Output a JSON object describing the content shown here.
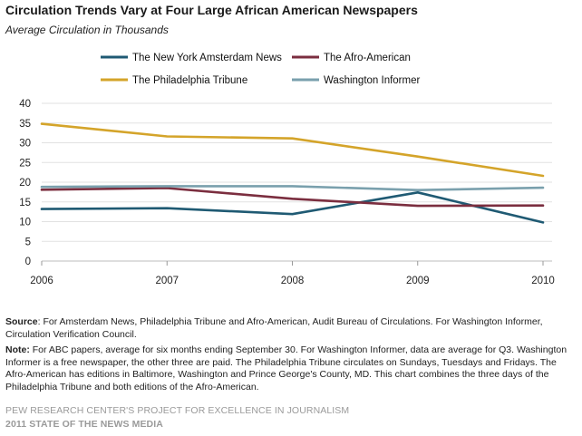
{
  "header": {
    "title": "Circulation Trends Vary at Four Large African American Newspapers",
    "subtitle": "Average Circulation in Thousands"
  },
  "chart_data": {
    "type": "line",
    "title": "Circulation Trends Vary at Four Large African American Newspapers",
    "subtitle": "Average Circulation in Thousands",
    "x": [
      "2006",
      "2007",
      "2008",
      "2009",
      "2010"
    ],
    "ylim": [
      0,
      40
    ],
    "yticks": [
      0,
      5,
      10,
      15,
      20,
      25,
      30,
      35,
      40
    ],
    "grid": true,
    "legend_position": "top",
    "series": [
      {
        "name": "The New York Amsterdam News",
        "color": "#1f5a73",
        "values": [
          13.2,
          13.4,
          11.9,
          17.4,
          9.8
        ]
      },
      {
        "name": "The Afro-American",
        "color": "#7b2e3f",
        "values": [
          18.1,
          18.5,
          15.8,
          14.0,
          14.1
        ]
      },
      {
        "name": "The Philadelphia Tribune",
        "color": "#d4a42a",
        "values": [
          34.8,
          31.6,
          31.1,
          26.5,
          21.6
        ]
      },
      {
        "name": "Washington Informer",
        "color": "#7aa0ad",
        "values": [
          18.8,
          19.0,
          19.0,
          18.0,
          18.6
        ]
      }
    ]
  },
  "notes": {
    "source_label": "Source",
    "source_text": ": For Amsterdam News, Philadelphia Tribune and Afro-American, Audit Bureau of Circulations. For Washington Informer, Circulation Verification Council.",
    "note_label": "Note:",
    "note_text": " For ABC papers, average for six months ending September 30. For Washington Informer, data are average for Q3. Washington Informer is a free newspaper, the other three are paid. The Philadelphia Tribune circulates on Sundays, Tuesdays and Fridays. The Afro-American has editions in Baltimore, Washington and Prince George's County, MD. This chart combines the three days of the Philadelphia Tribune and both editions of the Afro-American."
  },
  "credits": {
    "line1": "PEW RESEARCH CENTER'S PROJECT FOR EXCELLENCE IN JOURNALISM",
    "line2": "2011 STATE OF THE NEWS MEDIA"
  }
}
